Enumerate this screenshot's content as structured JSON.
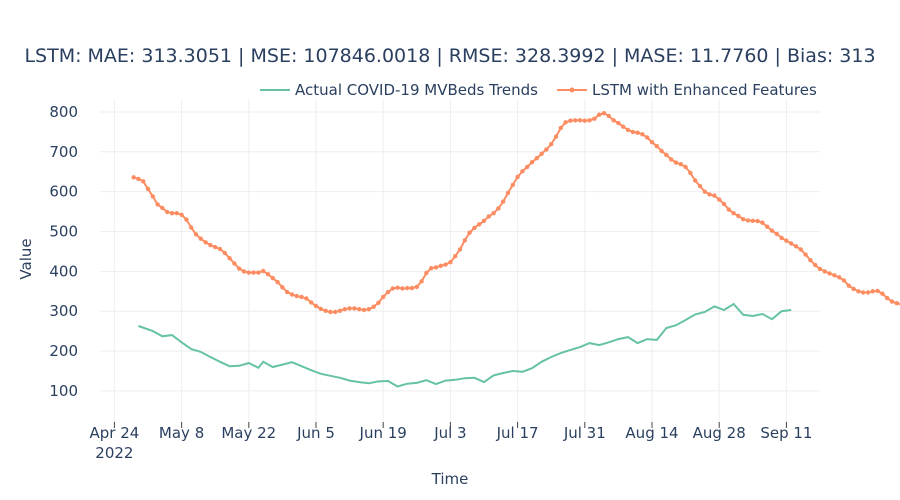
{
  "chart_data": {
    "type": "line",
    "title": "LSTM: MAE: 313.3051 | MSE: 107846.0018 | RMSE: 328.3992 | MASE: 11.7760 | Bias: 313",
    "xlabel": "Time",
    "ylabel": "Value",
    "x_range": [
      "2022-04-21",
      "2022-09-18"
    ],
    "ylim": [
      22,
      830
    ],
    "y_ticks": [
      100,
      200,
      300,
      400,
      500,
      600,
      700,
      800
    ],
    "x_ticks": [
      {
        "date": "2022-04-24",
        "label": "Apr 24",
        "sublabel": "2022"
      },
      {
        "date": "2022-05-08",
        "label": "May 8"
      },
      {
        "date": "2022-05-22",
        "label": "May 22"
      },
      {
        "date": "2022-06-05",
        "label": "Jun 5"
      },
      {
        "date": "2022-06-19",
        "label": "Jun 19"
      },
      {
        "date": "2022-07-03",
        "label": "Jul 3"
      },
      {
        "date": "2022-07-17",
        "label": "Jul 17"
      },
      {
        "date": "2022-07-31",
        "label": "Jul 31"
      },
      {
        "date": "2022-08-14",
        "label": "Aug 14"
      },
      {
        "date": "2022-08-28",
        "label": "Aug 28"
      },
      {
        "date": "2022-09-11",
        "label": "Sep 11"
      }
    ],
    "grid": true,
    "legend_position": "top-right",
    "series": [
      {
        "name": "Actual COVID-19 MVBeds Trends",
        "color": "#66c2a5",
        "markers": false,
        "points": [
          [
            "2022-04-29",
            263
          ],
          [
            "2022-05-02",
            250
          ],
          [
            "2022-05-04",
            237
          ],
          [
            "2022-05-06",
            240
          ],
          [
            "2022-05-08",
            222
          ],
          [
            "2022-05-10",
            205
          ],
          [
            "2022-05-12",
            198
          ],
          [
            "2022-05-14",
            185
          ],
          [
            "2022-05-16",
            173
          ],
          [
            "2022-05-18",
            162
          ],
          [
            "2022-05-20",
            163
          ],
          [
            "2022-05-22",
            170
          ],
          [
            "2022-05-24",
            158
          ],
          [
            "2022-05-25",
            173
          ],
          [
            "2022-05-27",
            160
          ],
          [
            "2022-05-29",
            166
          ],
          [
            "2022-05-31",
            172
          ],
          [
            "2022-06-02",
            162
          ],
          [
            "2022-06-04",
            152
          ],
          [
            "2022-06-06",
            143
          ],
          [
            "2022-06-08",
            138
          ],
          [
            "2022-06-10",
            133
          ],
          [
            "2022-06-12",
            126
          ],
          [
            "2022-06-14",
            122
          ],
          [
            "2022-06-16",
            119
          ],
          [
            "2022-06-18",
            124
          ],
          [
            "2022-06-20",
            125
          ],
          [
            "2022-06-22",
            111
          ],
          [
            "2022-06-24",
            118
          ],
          [
            "2022-06-26",
            120
          ],
          [
            "2022-06-28",
            127
          ],
          [
            "2022-06-30",
            117
          ],
          [
            "2022-07-02",
            126
          ],
          [
            "2022-07-04",
            128
          ],
          [
            "2022-07-06",
            132
          ],
          [
            "2022-07-08",
            133
          ],
          [
            "2022-07-10",
            122
          ],
          [
            "2022-07-12",
            139
          ],
          [
            "2022-07-14",
            145
          ],
          [
            "2022-07-16",
            150
          ],
          [
            "2022-07-18",
            148
          ],
          [
            "2022-07-20",
            157
          ],
          [
            "2022-07-22",
            173
          ],
          [
            "2022-07-24",
            185
          ],
          [
            "2022-07-26",
            195
          ],
          [
            "2022-07-28",
            203
          ],
          [
            "2022-07-30",
            210
          ],
          [
            "2022-08-01",
            220
          ],
          [
            "2022-08-03",
            215
          ],
          [
            "2022-08-05",
            222
          ],
          [
            "2022-08-07",
            230
          ],
          [
            "2022-08-09",
            235
          ],
          [
            "2022-08-11",
            220
          ],
          [
            "2022-08-13",
            230
          ],
          [
            "2022-08-15",
            228
          ],
          [
            "2022-08-17",
            258
          ],
          [
            "2022-08-19",
            265
          ],
          [
            "2022-08-21",
            278
          ],
          [
            "2022-08-23",
            292
          ],
          [
            "2022-08-25",
            298
          ],
          [
            "2022-08-27",
            312
          ],
          [
            "2022-08-29",
            303
          ],
          [
            "2022-08-31",
            318
          ],
          [
            "2022-09-02",
            291
          ],
          [
            "2022-09-04",
            288
          ],
          [
            "2022-09-06",
            293
          ],
          [
            "2022-09-08",
            280
          ],
          [
            "2022-09-10",
            300
          ],
          [
            "2022-09-12",
            303
          ]
        ]
      },
      {
        "name": "LSTM with Enhanced Features",
        "color": "#fc8d62",
        "markers": true,
        "points": []
      }
    ]
  }
}
